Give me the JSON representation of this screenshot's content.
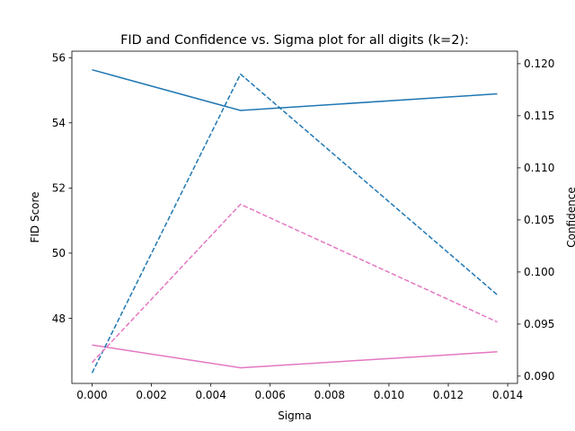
{
  "chart_data": {
    "type": "line",
    "title": "FID and Confidence vs. Sigma plot for all digits (k=2):",
    "xlabel": "Sigma",
    "ylabel": "FID Score",
    "ylabel_right": "Confidence",
    "grid": false,
    "x": [
      0.0,
      0.005,
      0.01365
    ],
    "xlim": [
      -0.00068,
      0.01433
    ],
    "ylim": [
      46.0,
      56.2
    ],
    "ylim_right": [
      0.0893,
      0.1212
    ],
    "xticks": [
      "0.000",
      "0.002",
      "0.004",
      "0.006",
      "0.008",
      "0.010",
      "0.012",
      "0.014"
    ],
    "xtick_values": [
      0.0,
      0.002,
      0.004,
      0.006,
      0.008,
      0.01,
      0.012,
      0.014
    ],
    "yticks": [
      "48",
      "50",
      "52",
      "54",
      "56"
    ],
    "ytick_values": [
      48,
      50,
      52,
      54,
      56
    ],
    "yticks_right": [
      "0.090",
      "0.095",
      "0.100",
      "0.105",
      "0.110",
      "0.115",
      "0.120"
    ],
    "ytick_values_right": [
      0.09,
      0.095,
      0.1,
      0.105,
      0.11,
      0.115,
      0.12
    ],
    "series": [
      {
        "axis": "left",
        "style": "solid",
        "color": "#1f77b4",
        "values": [
          55.63,
          54.38,
          54.89
        ]
      },
      {
        "axis": "left",
        "style": "solid",
        "color": "#e377c2",
        "values": [
          47.18,
          46.48,
          46.97
        ]
      },
      {
        "axis": "right",
        "style": "dashed",
        "color": "#1f77b4",
        "values": [
          0.0903,
          0.119,
          0.0978
        ]
      },
      {
        "axis": "right",
        "style": "dashed",
        "color": "#e377c2",
        "values": [
          0.0913,
          0.1065,
          0.0952
        ]
      }
    ]
  }
}
